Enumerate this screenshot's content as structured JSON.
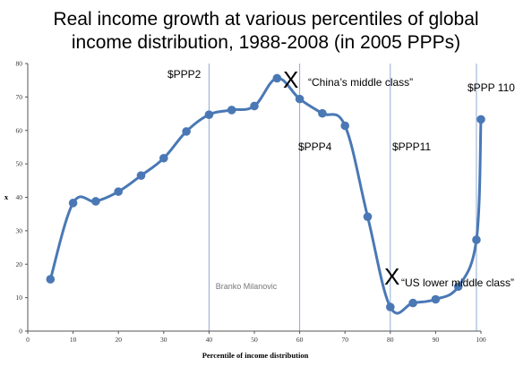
{
  "chart_data": {
    "type": "line",
    "title_line1": "Real income growth at various percentiles of global",
    "title_line2": "income distribution, 1988-2008 (in 2005 PPPs)",
    "xlabel": "Percentile of income distribution",
    "ylabel": "x",
    "xlim": [
      0,
      100
    ],
    "ylim": [
      0,
      80
    ],
    "xticks": [
      0,
      10,
      20,
      30,
      40,
      50,
      60,
      70,
      80,
      90,
      100
    ],
    "yticks": [
      0,
      10,
      20,
      30,
      40,
      50,
      60,
      70,
      80
    ],
    "vertical_lines": [
      40,
      60,
      80,
      99
    ],
    "series": [
      {
        "color": "#4a78b5",
        "x": [
          5,
          10,
          15,
          20,
          25,
          30,
          35,
          40,
          45,
          50,
          55,
          60,
          65,
          70,
          75,
          80,
          85,
          90,
          95,
          99,
          100
        ],
        "y": [
          15.5,
          38.3,
          38.8,
          41.7,
          46.5,
          51.7,
          59.7,
          64.7,
          66.1,
          67.3,
          75.6,
          69.4,
          65.1,
          61.4,
          34.2,
          7.2,
          8.4,
          9.5,
          13.3,
          27.3,
          63.3
        ]
      }
    ],
    "annotations": {
      "ppp2": "$PPP2",
      "ppp4": "$PPP4",
      "ppp11": "$PPP11",
      "ppp110": "$PPP 110",
      "x_mark": "X",
      "china": "“China’s middle class”",
      "us": "“US lower middle class”",
      "watermark": "Branko Milanovic"
    }
  }
}
